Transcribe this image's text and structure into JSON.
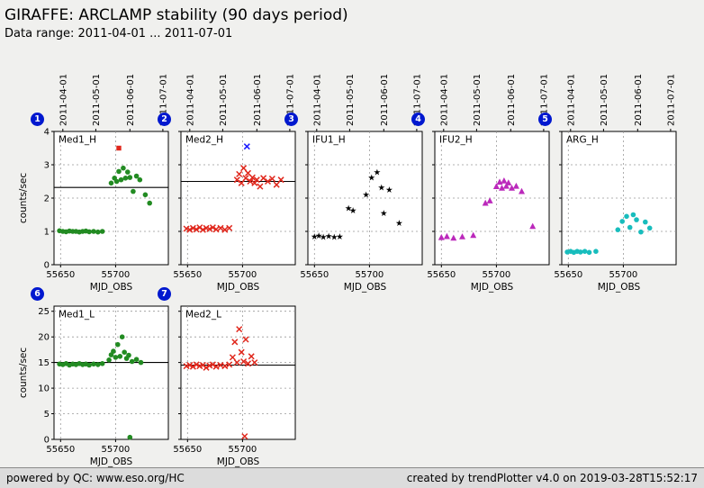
{
  "header": {
    "title": "GIRAFFE: ARCLAMP stability (90 days period)",
    "subtitle": "Data range: 2011-04-01 ... 2011-07-01"
  },
  "footer": {
    "left": "powered by QC: www.eso.org/HC",
    "right": "created by trendPlotter v4.0 on 2019-03-28T15:52:17"
  },
  "chart_data": {
    "type": "scatter",
    "x_axis": {
      "label": "MJD_OBS",
      "lim": [
        55644,
        55748
      ],
      "ticks": [
        55650,
        55700
      ]
    },
    "y_axis_label": "counts/sec",
    "top_axis_dates": [
      {
        "label": "2011-04-01",
        "mjd": 55652
      },
      {
        "label": "2011-05-01",
        "mjd": 55682
      },
      {
        "label": "2011-06-01",
        "mjd": 55713
      },
      {
        "label": "2011-07-01",
        "mjd": 55743
      }
    ],
    "charts": [
      {
        "badge": "1",
        "label": "Med1_H",
        "row": 1,
        "marker": "circle",
        "color": "#228b22",
        "ylim": [
          0,
          4
        ],
        "yticks": [
          0,
          1,
          2,
          3,
          4
        ],
        "grid_yticks": [
          1,
          2,
          3
        ],
        "show_ylabels": true,
        "show_date_labels": true,
        "refline": 2.32,
        "points": [
          [
            55649,
            1.02
          ],
          [
            55652,
            1.0
          ],
          [
            55655,
            0.99
          ],
          [
            55658,
            1.01
          ],
          [
            55661,
            1.0
          ],
          [
            55664,
            1.0
          ],
          [
            55667,
            0.98
          ],
          [
            55670,
            1.0
          ],
          [
            55673,
            1.01
          ],
          [
            55676,
            0.99
          ],
          [
            55680,
            1.0
          ],
          [
            55684,
            0.98
          ],
          [
            55688,
            1.0
          ],
          [
            55696,
            2.45
          ],
          [
            55699,
            2.6
          ],
          [
            55701,
            2.5
          ],
          [
            55703,
            2.8
          ],
          [
            55705,
            2.55
          ],
          [
            55707,
            2.9
          ],
          [
            55709,
            2.6
          ],
          [
            55711,
            2.78
          ],
          [
            55713,
            2.62
          ],
          [
            55716,
            2.2
          ],
          [
            55719,
            2.66
          ],
          [
            55722,
            2.55
          ],
          [
            55727,
            2.1
          ],
          [
            55731,
            1.85
          ]
        ],
        "outliers": [
          {
            "x": 55703,
            "y": 3.5,
            "marker": "square",
            "color": "#e0271c"
          }
        ]
      },
      {
        "badge": "2",
        "label": "Med2_H",
        "row": 1,
        "marker": "x",
        "color": "#e0271c",
        "ylim": [
          0,
          4
        ],
        "yticks": [
          0,
          1,
          2,
          3,
          4
        ],
        "grid_yticks": [
          1,
          2,
          3
        ],
        "show_ylabels": false,
        "show_date_labels": true,
        "refline": 2.5,
        "points": [
          [
            55649,
            1.08
          ],
          [
            55652,
            1.05
          ],
          [
            55655,
            1.1
          ],
          [
            55658,
            1.06
          ],
          [
            55661,
            1.12
          ],
          [
            55664,
            1.05
          ],
          [
            55667,
            1.1
          ],
          [
            55670,
            1.07
          ],
          [
            55673,
            1.12
          ],
          [
            55676,
            1.06
          ],
          [
            55680,
            1.1
          ],
          [
            55684,
            1.05
          ],
          [
            55688,
            1.1
          ],
          [
            55695,
            2.55
          ],
          [
            55697,
            2.72
          ],
          [
            55699,
            2.45
          ],
          [
            55701,
            2.9
          ],
          [
            55703,
            2.6
          ],
          [
            55705,
            2.75
          ],
          [
            55707,
            2.5
          ],
          [
            55709,
            2.62
          ],
          [
            55711,
            2.45
          ],
          [
            55713,
            2.55
          ],
          [
            55716,
            2.35
          ],
          [
            55719,
            2.6
          ],
          [
            55723,
            2.5
          ],
          [
            55727,
            2.58
          ],
          [
            55731,
            2.4
          ],
          [
            55735,
            2.55
          ]
        ],
        "outliers": [
          {
            "x": 55704,
            "y": 3.55,
            "marker": "x",
            "color": "#1a1aff"
          }
        ]
      },
      {
        "badge": "3",
        "label": "IFU1_H",
        "row": 1,
        "marker": "star",
        "color": "#1a1a1a",
        "ylim": [
          0,
          4
        ],
        "yticks": [
          0,
          1,
          2,
          3,
          4
        ],
        "grid_yticks": [
          1,
          2,
          3
        ],
        "show_ylabels": false,
        "show_date_labels": true,
        "refline": null,
        "points": [
          [
            55650,
            0.85
          ],
          [
            55654,
            0.87
          ],
          [
            55658,
            0.84
          ],
          [
            55663,
            0.86
          ],
          [
            55668,
            0.83
          ],
          [
            55673,
            0.85
          ],
          [
            55681,
            1.7
          ],
          [
            55685,
            1.63
          ],
          [
            55697,
            2.1
          ],
          [
            55702,
            2.62
          ],
          [
            55707,
            2.78
          ],
          [
            55711,
            2.32
          ],
          [
            55713,
            1.55
          ],
          [
            55718,
            2.25
          ],
          [
            55727,
            1.25
          ]
        ],
        "outliers": []
      },
      {
        "badge": "4",
        "label": "IFU2_H",
        "row": 1,
        "marker": "triangle",
        "color": "#bb29bb",
        "ylim": [
          0,
          4
        ],
        "yticks": [
          0,
          1,
          2,
          3,
          4
        ],
        "grid_yticks": [
          1,
          2,
          3
        ],
        "show_ylabels": false,
        "show_date_labels": true,
        "refline": null,
        "points": [
          [
            55650,
            0.82
          ],
          [
            55655,
            0.85
          ],
          [
            55661,
            0.8
          ],
          [
            55669,
            0.84
          ],
          [
            55679,
            0.88
          ],
          [
            55690,
            1.85
          ],
          [
            55694,
            1.92
          ],
          [
            55700,
            2.35
          ],
          [
            55703,
            2.48
          ],
          [
            55705,
            2.3
          ],
          [
            55707,
            2.52
          ],
          [
            55709,
            2.36
          ],
          [
            55711,
            2.46
          ],
          [
            55714,
            2.3
          ],
          [
            55718,
            2.36
          ],
          [
            55723,
            2.2
          ],
          [
            55733,
            1.15
          ]
        ],
        "outliers": []
      },
      {
        "badge": "5",
        "label": "ARG_H",
        "row": 1,
        "marker": "circle",
        "color": "#18bdbd",
        "ylim": [
          0,
          4
        ],
        "yticks": [
          0,
          1,
          2,
          3,
          4
        ],
        "grid_yticks": [
          1,
          2,
          3
        ],
        "show_ylabels": false,
        "show_date_labels": true,
        "refline": null,
        "points": [
          [
            55649,
            0.38
          ],
          [
            55652,
            0.4
          ],
          [
            55655,
            0.37
          ],
          [
            55658,
            0.4
          ],
          [
            55661,
            0.38
          ],
          [
            55665,
            0.4
          ],
          [
            55669,
            0.37
          ],
          [
            55675,
            0.4
          ],
          [
            55695,
            1.05
          ],
          [
            55699,
            1.3
          ],
          [
            55703,
            1.45
          ],
          [
            55706,
            1.12
          ],
          [
            55709,
            1.5
          ],
          [
            55712,
            1.35
          ],
          [
            55716,
            0.98
          ],
          [
            55720,
            1.28
          ],
          [
            55724,
            1.1
          ]
        ],
        "outliers": []
      },
      {
        "badge": "6",
        "label": "Med1_L",
        "row": 2,
        "marker": "circle",
        "color": "#228b22",
        "ylim": [
          0,
          26
        ],
        "yticks": [
          0,
          5,
          10,
          15,
          20,
          25
        ],
        "grid_yticks": [
          5,
          10,
          15,
          20,
          25
        ],
        "show_ylabels": true,
        "show_date_labels": false,
        "refline": 15.0,
        "points": [
          [
            55649,
            14.7
          ],
          [
            55652,
            14.6
          ],
          [
            55655,
            14.8
          ],
          [
            55658,
            14.5
          ],
          [
            55661,
            14.7
          ],
          [
            55664,
            14.6
          ],
          [
            55667,
            14.8
          ],
          [
            55670,
            14.6
          ],
          [
            55673,
            14.7
          ],
          [
            55676,
            14.5
          ],
          [
            55680,
            14.7
          ],
          [
            55684,
            14.6
          ],
          [
            55688,
            14.8
          ],
          [
            55694,
            15.5
          ],
          [
            55696,
            16.5
          ],
          [
            55698,
            17.2
          ],
          [
            55700,
            16.0
          ],
          [
            55702,
            18.5
          ],
          [
            55704,
            16.2
          ],
          [
            55706,
            20.0
          ],
          [
            55708,
            17.0
          ],
          [
            55710,
            15.8
          ],
          [
            55712,
            16.4
          ],
          [
            55715,
            15.2
          ],
          [
            55719,
            15.6
          ],
          [
            55723,
            15.0
          ]
        ],
        "outliers": [
          {
            "x": 55713,
            "y": 0.4,
            "marker": "circle",
            "color": "#228b22"
          }
        ]
      },
      {
        "badge": "7",
        "label": "Med2_L",
        "row": 2,
        "marker": "x",
        "color": "#e0271c",
        "ylim": [
          0,
          26
        ],
        "yticks": [
          0,
          5,
          10,
          15,
          20,
          25
        ],
        "grid_yticks": [
          5,
          10,
          15,
          20,
          25
        ],
        "show_ylabels": false,
        "show_date_labels": false,
        "refline": 14.5,
        "points": [
          [
            55649,
            14.3
          ],
          [
            55652,
            14.5
          ],
          [
            55655,
            14.2
          ],
          [
            55658,
            14.6
          ],
          [
            55661,
            14.3
          ],
          [
            55664,
            14.5
          ],
          [
            55667,
            14.0
          ],
          [
            55670,
            14.4
          ],
          [
            55673,
            14.6
          ],
          [
            55676,
            14.2
          ],
          [
            55680,
            14.5
          ],
          [
            55684,
            14.3
          ],
          [
            55688,
            14.6
          ],
          [
            55691,
            16.0
          ],
          [
            55693,
            19.0
          ],
          [
            55695,
            15.0
          ],
          [
            55697,
            21.5
          ],
          [
            55699,
            17.0
          ],
          [
            55701,
            15.2
          ],
          [
            55703,
            19.5
          ],
          [
            55705,
            14.8
          ],
          [
            55708,
            16.2
          ],
          [
            55711,
            15.0
          ]
        ],
        "outliers": [
          {
            "x": 55702,
            "y": 0.6,
            "marker": "x",
            "color": "#e0271c"
          }
        ]
      }
    ]
  }
}
